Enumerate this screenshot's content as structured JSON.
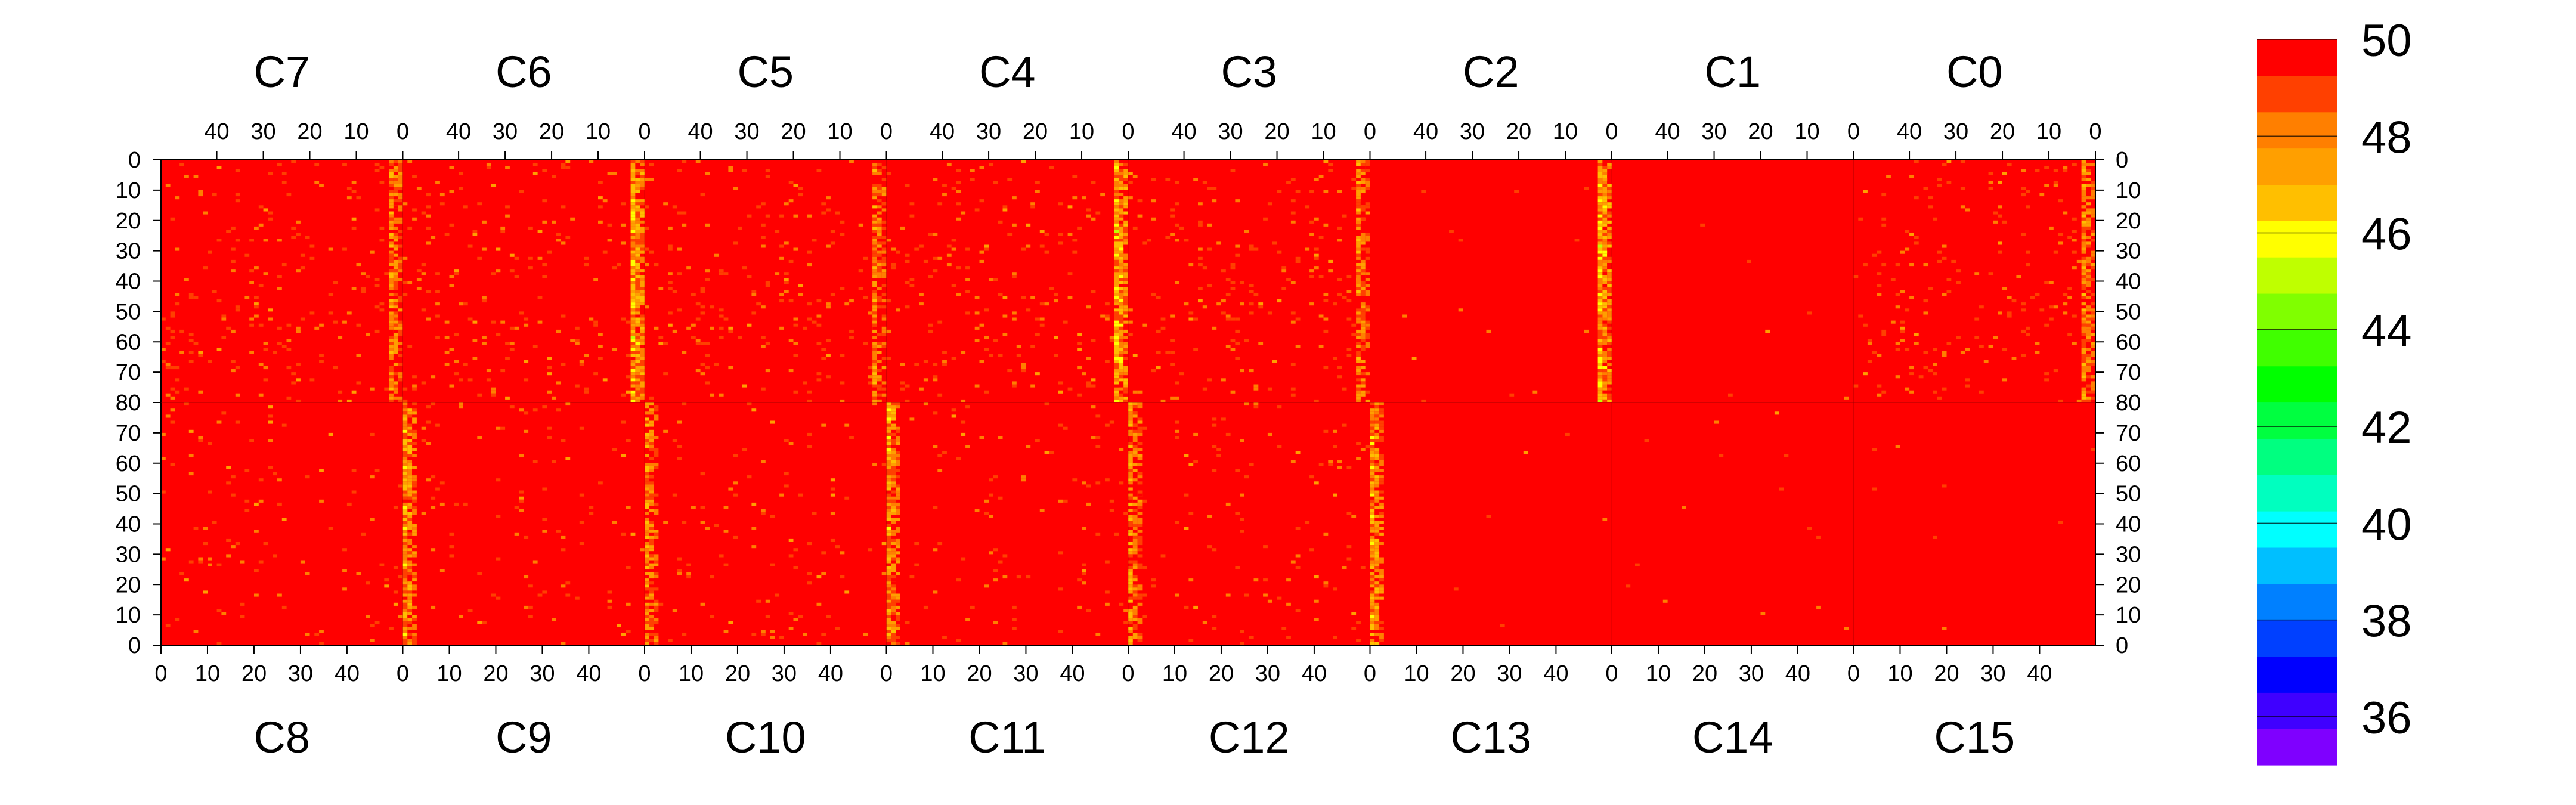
{
  "chart_data": {
    "type": "heatmap",
    "title": "",
    "xlabel": "",
    "ylabel": "",
    "top_chip_labels": [
      "C7",
      "C6",
      "C5",
      "C4",
      "C3",
      "C2",
      "C1",
      "C0"
    ],
    "bottom_chip_labels": [
      "C8",
      "C9",
      "C10",
      "C11",
      "C12",
      "C13",
      "C14",
      "C15"
    ],
    "x_ticks_top": [
      "40",
      "30",
      "20",
      "10",
      "0"
    ],
    "x_ticks_bottom": [
      "0",
      "10",
      "20",
      "30",
      "40"
    ],
    "y_ticks_top_half": [
      "0",
      "10",
      "20",
      "30",
      "40",
      "50",
      "60",
      "70",
      "80"
    ],
    "y_ticks_bottom_half": [
      "70",
      "60",
      "50",
      "40",
      "30",
      "20",
      "10",
      "0"
    ],
    "columns_per_chip": 52,
    "rows_per_half": 80,
    "zlim": [
      35,
      50
    ],
    "colorbar_ticks": [
      "50",
      "48",
      "46",
      "44",
      "42",
      "40",
      "38",
      "36"
    ],
    "colorbar_tick_values": [
      50,
      48,
      46,
      44,
      42,
      40,
      38,
      36
    ],
    "colormap": [
      "#7f00ff",
      "#3f00ff",
      "#0000ff",
      "#0040ff",
      "#0080ff",
      "#00bfff",
      "#00ffff",
      "#00ffbf",
      "#00ff80",
      "#00ff40",
      "#00ff00",
      "#40ff00",
      "#80ff00",
      "#bfff00",
      "#ffff00",
      "#ffbf00",
      "#ff9f00",
      "#ff7f00",
      "#ff4000",
      "#ff0000"
    ],
    "background_value": 50,
    "hot_columns": [
      {
        "chip": "C6",
        "col": 0,
        "level": 46.5
      },
      {
        "chip": "C7",
        "col": 0,
        "level": 47.5
      },
      {
        "chip": "C5",
        "col": 0,
        "level": 47.5
      },
      {
        "chip": "C4",
        "col": 0,
        "level": 46.5
      },
      {
        "chip": "C3",
        "col": 0,
        "level": 47.5
      },
      {
        "chip": "C2",
        "col": 0,
        "level": 46.5
      },
      {
        "chip": "C0",
        "col": 0,
        "level": 47.5
      },
      {
        "chip": "C9",
        "col": 0,
        "level": 47.0
      },
      {
        "chip": "C10",
        "col": 0,
        "level": 47.5
      },
      {
        "chip": "C11",
        "col": 0,
        "level": 47.0
      },
      {
        "chip": "C12",
        "col": 0,
        "level": 47.5
      },
      {
        "chip": "C13",
        "col": 0,
        "level": 47.0
      }
    ]
  }
}
